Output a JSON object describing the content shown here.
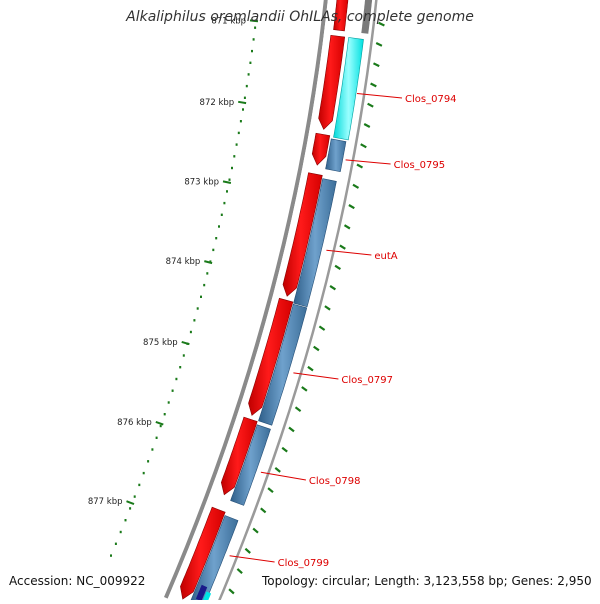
{
  "title": "Alkaliphilus oremlandii OhILAs, complete genome",
  "accession": "Accession: NC_009922",
  "summary": "Topology: circular; Length: 3,123,558 bp; Genes: 2,950",
  "ticks": [
    {
      "label": "871 kbp",
      "value": 871
    },
    {
      "label": "872 kbp",
      "value": 872
    },
    {
      "label": "873 kbp",
      "value": 873
    },
    {
      "label": "874 kbp",
      "value": 874
    },
    {
      "label": "875 kbp",
      "value": 875
    },
    {
      "label": "876 kbp",
      "value": 876
    },
    {
      "label": "877 kbp",
      "value": 877
    }
  ],
  "genes": [
    {
      "name": "Clos_0794"
    },
    {
      "name": "Clos_0795"
    },
    {
      "name": "eutA"
    },
    {
      "name": "Clos_0797"
    },
    {
      "name": "Clos_0798"
    },
    {
      "name": "Clos_0799"
    }
  ],
  "colors": {
    "backbone": "#8a8a8a",
    "cds": "#ff0000",
    "cds_dark": "#b00000",
    "cog_blue": "#4682b4",
    "cog_cyan": "#00ffff",
    "scale": "#1a7a1a",
    "label": "#dd0000"
  }
}
